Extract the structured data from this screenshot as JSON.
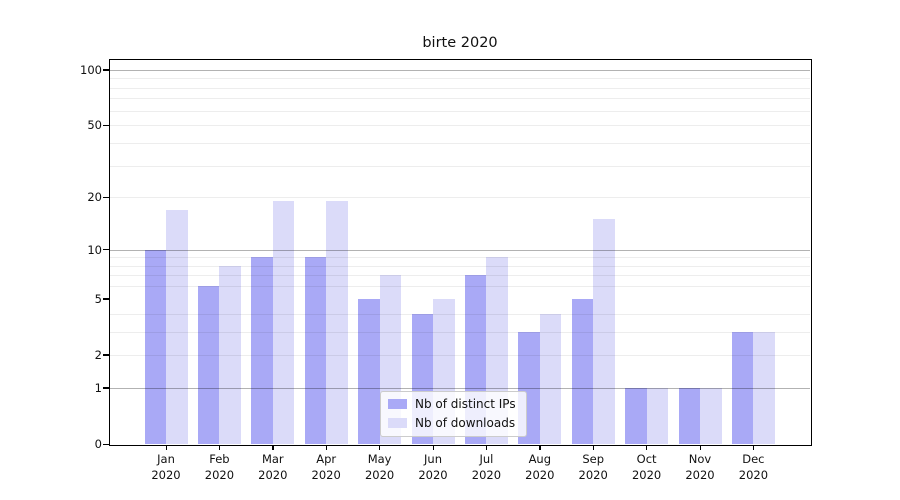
{
  "page": {
    "background": "#ffffff"
  },
  "chart_data": {
    "type": "bar",
    "title": "birte 2020",
    "categories": [
      "Jan 2020",
      "Feb 2020",
      "Mar 2020",
      "Apr 2020",
      "May 2020",
      "Jun 2020",
      "Jul 2020",
      "Aug 2020",
      "Sep 2020",
      "Oct 2020",
      "Nov 2020",
      "Dec 2020"
    ],
    "series": [
      {
        "name": "Nb of distinct IPs",
        "color": "#a9a9f6",
        "values": [
          10,
          6,
          9,
          9,
          5,
          4,
          7,
          3,
          5,
          1,
          1,
          3
        ]
      },
      {
        "name": "Nb of downloads",
        "color": "#dbdbf9",
        "values": [
          17,
          8,
          19,
          19,
          7,
          5,
          9,
          4,
          15,
          1,
          1,
          3
        ]
      }
    ],
    "xlabel": "",
    "ylabel": "",
    "y_axis": {
      "scale": "log1p",
      "ylim": [
        0,
        113
      ],
      "tick_values": [
        0,
        1,
        2,
        5,
        10,
        20,
        50,
        100
      ],
      "major_gridlines": [
        1,
        10,
        100
      ],
      "minor_gridlines": [
        2,
        3,
        4,
        6,
        7,
        8,
        9,
        20,
        30,
        40,
        50,
        60,
        70,
        80,
        90
      ]
    },
    "grid": "on, drawn above bars",
    "legend": {
      "position": "lower center"
    }
  }
}
